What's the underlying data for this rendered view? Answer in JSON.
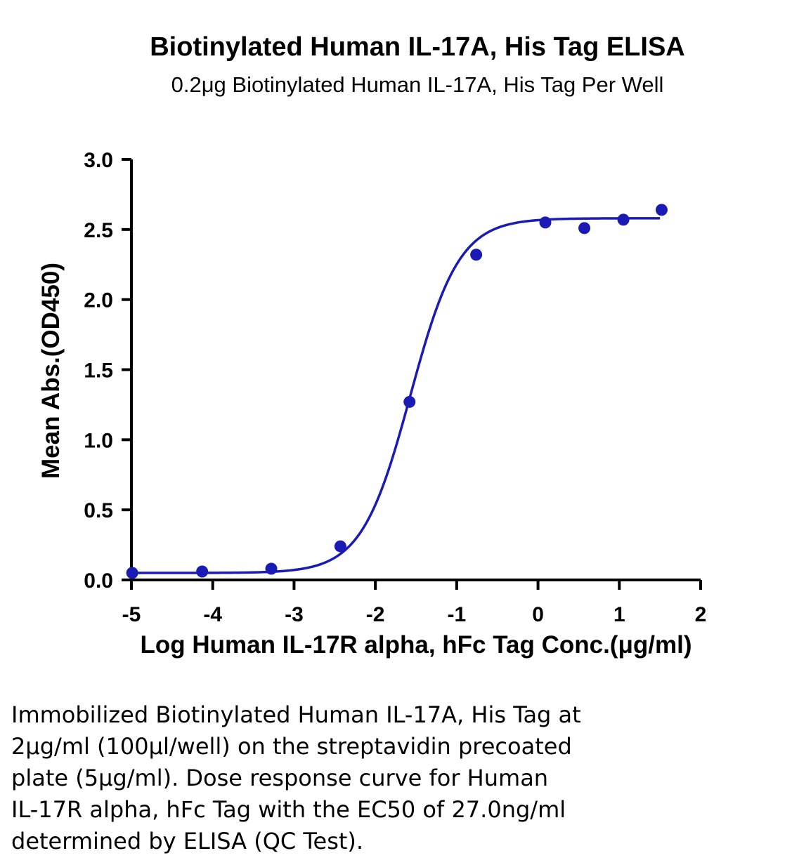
{
  "chart_data": {
    "type": "scatter",
    "title": "Biotinylated Human IL-17A, His Tag ELISA",
    "subtitle": "0.2μg Biotinylated Human IL-17A, His Tag Per Well",
    "xlabel": "Log Human IL-17R alpha, hFc Tag Conc.(μg/ml)",
    "ylabel": "Mean Abs.(OD450)",
    "xlim": [
      -5,
      2
    ],
    "ylim": [
      0,
      3.0
    ],
    "x_ticks": [
      "-5",
      "-4",
      "-3",
      "-2",
      "-1",
      "0",
      "1",
      "2"
    ],
    "y_ticks": [
      "0.0",
      "0.5",
      "1.0",
      "1.5",
      "2.0",
      "2.5",
      "3.0"
    ],
    "grid": false,
    "legend": "none",
    "series": [
      {
        "color": "#1a1ab4",
        "marker": "circle",
        "points": [
          {
            "x": -4.99,
            "y": 0.05
          },
          {
            "x": -4.13,
            "y": 0.06
          },
          {
            "x": -3.28,
            "y": 0.08
          },
          {
            "x": -2.43,
            "y": 0.24
          },
          {
            "x": -1.58,
            "y": 1.27
          },
          {
            "x": -0.76,
            "y": 2.32
          },
          {
            "x": 0.09,
            "y": 2.55
          },
          {
            "x": 0.57,
            "y": 2.51
          },
          {
            "x": 1.05,
            "y": 2.57
          },
          {
            "x": 1.52,
            "y": 2.64
          }
        ],
        "fit": {
          "model": "4PL",
          "bottom": 0.05,
          "top": 2.58,
          "log_ec50": -1.57,
          "hill": 1.45,
          "x_range": [
            -5,
            1.5
          ]
        }
      }
    ]
  },
  "caption": {
    "lines": [
      "Immobilized Biotinylated Human IL-17A, His Tag at",
      "2μg/ml (100μl/well) on the streptavidin precoated",
      "plate (5μg/ml). Dose response curve for Human",
      "IL-17R alpha, hFc Tag with the EC50 of 27.0ng/ml",
      "determined by ELISA (QC Test)."
    ]
  }
}
